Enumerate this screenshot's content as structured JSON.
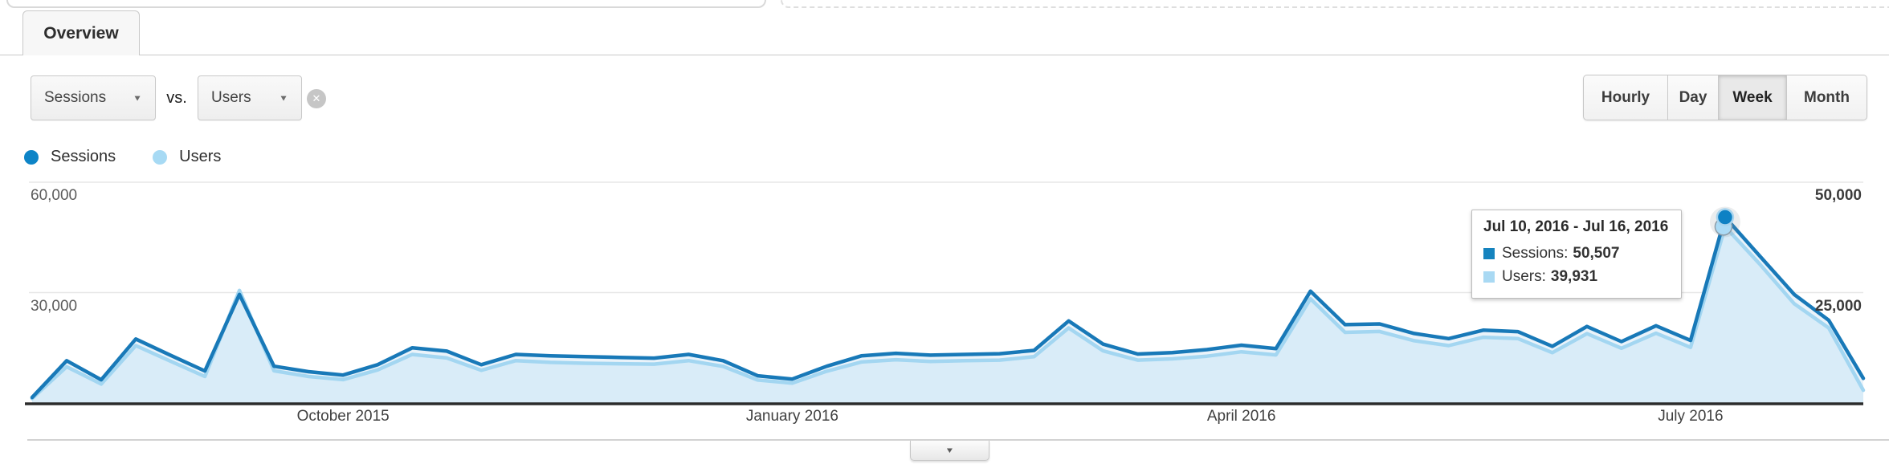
{
  "tabs": {
    "overview": "Overview"
  },
  "toolbar": {
    "metric_primary": "Sessions",
    "vs_label": "vs.",
    "metric_secondary": "Users",
    "granularity": {
      "options": [
        "Hourly",
        "Day",
        "Week",
        "Month"
      ],
      "selected": "Week"
    }
  },
  "icons": {
    "caret_down": "▼",
    "clear": "✕",
    "collapse": "▼"
  },
  "legend": {
    "items": [
      {
        "label": "Sessions",
        "color": "#0d84c7"
      },
      {
        "label": "Users",
        "color": "#a7daf4"
      }
    ]
  },
  "tooltip": {
    "title": "Jul 10, 2016 - Jul 16, 2016",
    "rows": [
      {
        "label": "Sessions:",
        "value": "50,507",
        "color": "#1583be"
      },
      {
        "label": "Users:",
        "value": "39,931",
        "color": "#a9d9f3"
      }
    ]
  },
  "chart_data": {
    "type": "area",
    "x_unit": "week",
    "title": "",
    "xlabel": "",
    "ylabel": "",
    "grid": true,
    "legend_position": "top-left",
    "x_tick_labels": [
      "October 2015",
      "January 2016",
      "April 2016",
      "July 2016"
    ],
    "x_tick_indices": [
      9,
      22,
      35,
      48
    ],
    "y_axis_left": {
      "metric": "Sessions",
      "max": 60000,
      "label_values": [
        "60,000",
        "30,000"
      ]
    },
    "y_axis_right": {
      "metric": "Users",
      "max": 50000,
      "label_values": [
        "50,000",
        "25,000"
      ]
    },
    "highlight_index": 49,
    "highlight": {
      "date_range": "Jul 10, 2016 - Jul 16, 2016",
      "sessions": 50507,
      "users": 39931
    },
    "series": [
      {
        "name": "Sessions",
        "axis": "left",
        "color": "#1879b8",
        "fill": "#eaf3fa",
        "values": [
          1500,
          11500,
          6300,
          17400,
          13000,
          8700,
          29500,
          10000,
          8500,
          7600,
          10400,
          15000,
          14100,
          10400,
          13200,
          12800,
          12600,
          12400,
          12200,
          13200,
          11500,
          7400,
          6500,
          10000,
          12800,
          13500,
          13000,
          13200,
          13400,
          14300,
          22300,
          16000,
          13300,
          13700,
          14500,
          15700,
          14800,
          30400,
          21300,
          21500,
          18900,
          17500,
          19800,
          19400,
          15400,
          20800,
          16700,
          21000,
          17000,
          50507,
          40000,
          29500,
          22500,
          6700
        ]
      },
      {
        "name": "Users",
        "axis": "right",
        "color": "#a3d6f1",
        "fill": "#d9ecf8",
        "values": [
          1000,
          8200,
          4300,
          13000,
          9500,
          6000,
          25500,
          7300,
          6000,
          5300,
          7500,
          11000,
          10200,
          7400,
          9600,
          9200,
          9000,
          8900,
          8800,
          9600,
          8300,
          5200,
          4500,
          7200,
          9300,
          9800,
          9400,
          9600,
          9700,
          10500,
          17000,
          11800,
          9700,
          10000,
          10600,
          11600,
          10900,
          23600,
          16000,
          16200,
          14100,
          13000,
          14900,
          14600,
          11400,
          15700,
          12400,
          15800,
          12600,
          39931,
          31500,
          22500,
          17000,
          2900
        ]
      }
    ]
  }
}
